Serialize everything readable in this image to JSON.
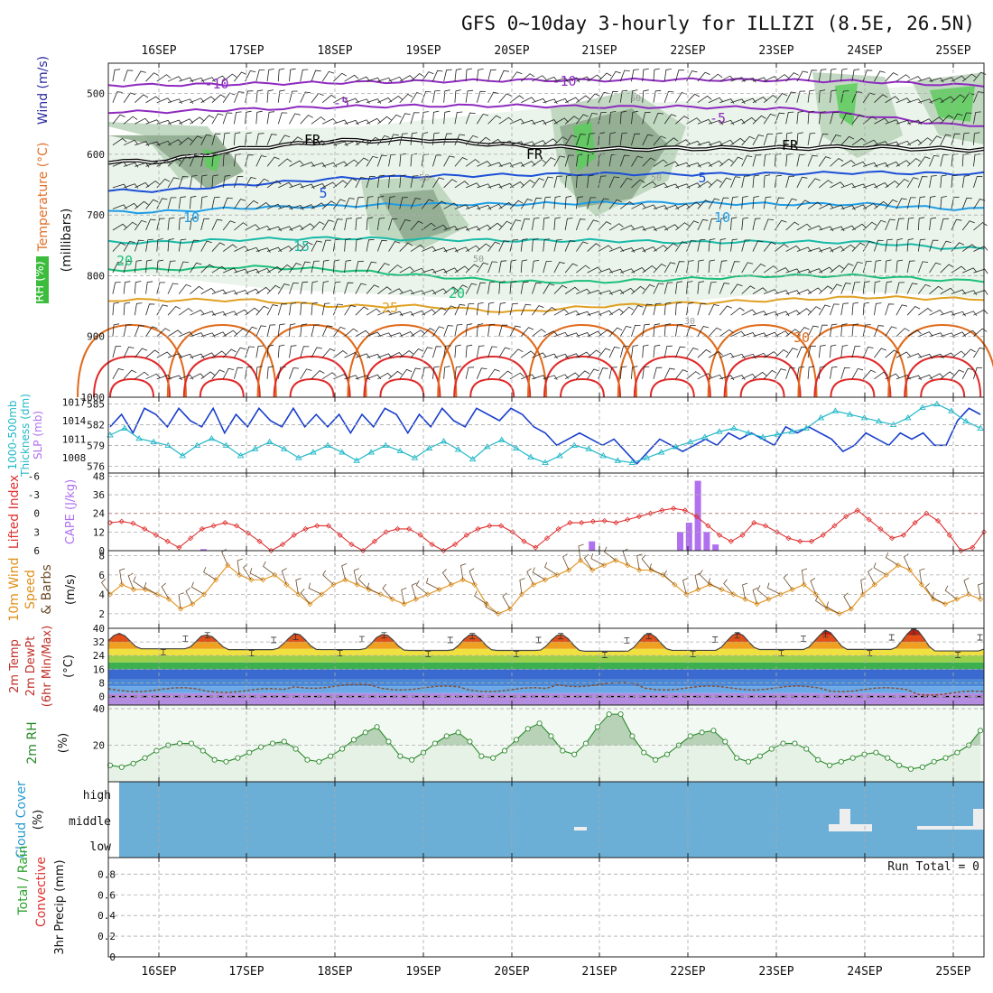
{
  "title": "GFS 0~10day 3-hourly for ILLIZI (8.5E, 26.5N)",
  "colors": {
    "temp_minus10": "#8e2bbf",
    "temp_minus5": "#8e2bbf",
    "freezing": "#000000",
    "temp_plus5": "#1c4fd8",
    "temp_plus10": "#1f9ce6",
    "temp_plus15": "#18b9a8",
    "temp_plus20": "#1cbf7a",
    "temp_plus25": "#e0a020",
    "temp_plus30": "#e06a1a",
    "temp_hot": "#e02a2a",
    "slp": "#1a3fcc",
    "thickness": "#22b8c8",
    "lifted_index": "#e03030",
    "cape": "#b070f0",
    "wind_speed": "#e0901a",
    "rh2m": "#2a8a2a",
    "cloud": "#6baed6",
    "rh_shade_light": "#e6f2e6",
    "rh_shade_mid": "#b8d2b8",
    "rh_shade_dark": "#8ca88c",
    "rh_shade_green": "#5ccc5c"
  },
  "chart_data": [
    {
      "type": "time-height",
      "name_panel": "upper-air",
      "ylabel_parts": [
        "RH (%)",
        "Temperature (°C)",
        "Wind (m/s)"
      ],
      "ylabel_units": "(millibars)",
      "x_top_labels": [
        "16SEP",
        "17SEP",
        "18SEP",
        "19SEP",
        "20SEP",
        "21SEP",
        "22SEP",
        "23SEP",
        "24SEP",
        "25SEP"
      ],
      "y_ticks": [
        "500",
        "600",
        "700",
        "800",
        "900",
        "1000"
      ],
      "ylim": [
        1000,
        450
      ],
      "isotherms": [
        {
          "label": "-10",
          "values": [
            486,
            484,
            482,
            480,
            478,
            478,
            477,
            478,
            480,
            486
          ]
        },
        {
          "label": "-5",
          "values": [
            530,
            526,
            522,
            520,
            520,
            522,
            522,
            524,
            536,
            552
          ]
        },
        {
          "label": "FR",
          "values": [
            612,
            590,
            578,
            576,
            585,
            592,
            590,
            590,
            588,
            592
          ]
        },
        {
          "label": "5",
          "values": [
            660,
            650,
            640,
            636,
            634,
            632,
            633,
            632,
            630,
            632
          ]
        },
        {
          "label": "10",
          "values": [
            695,
            688,
            685,
            682,
            682,
            680,
            680,
            682,
            682,
            690
          ]
        },
        {
          "label": "15",
          "values": [
            745,
            740,
            738,
            740,
            742,
            742,
            745,
            744,
            745,
            755
          ]
        },
        {
          "label": "20",
          "values": [
            790,
            785,
            790,
            800,
            810,
            810,
            805,
            800,
            800,
            808
          ]
        },
        {
          "label": "25",
          "values": [
            840,
            840,
            850,
            850,
            860,
            850,
            845,
            840,
            835,
            838
          ]
        }
      ],
      "inline_labels": [
        "-10",
        "-10",
        "-5",
        "-5",
        "FR",
        "FR",
        "FR",
        "5",
        "5",
        "10",
        "10",
        "15",
        "20",
        "20",
        "25",
        "30",
        "30",
        "50",
        "50",
        "50",
        "50"
      ]
    },
    {
      "type": "line",
      "name_panel": "slp-thickness",
      "ylabel_parts": [
        "1000-500mb",
        "Thickness (dm)",
        "SLP (mb)"
      ],
      "y_left_ticks": [
        "585",
        "582",
        "579",
        "576"
      ],
      "y_right_ticks": [
        "1017",
        "1014",
        "1011",
        "1008"
      ],
      "slp": [
        1013,
        1015,
        1012,
        1016,
        1015,
        1013,
        1016,
        1014,
        1013,
        1016,
        1012,
        1015,
        1013,
        1016,
        1014,
        1013,
        1016,
        1013,
        1015,
        1013,
        1015,
        1012,
        1015,
        1013,
        1016,
        1015,
        1012,
        1015,
        1013,
        1016,
        1014,
        1013,
        1016,
        1015,
        1014,
        1016,
        1015,
        1013,
        1012,
        1010,
        1011,
        1012,
        1011,
        1010,
        1011,
        1009,
        1007,
        1009,
        1011,
        1010,
        1009,
        1010,
        1011,
        1010,
        1012,
        1011,
        1012,
        1011,
        1010,
        1013,
        1012,
        1013,
        1012,
        1011,
        1009,
        1010,
        1012,
        1011,
        1010,
        1012,
        1011,
        1012,
        1010,
        1010,
        1014,
        1016,
        1015
      ],
      "thickness": [
        580.5,
        581.5,
        580,
        579.5,
        579,
        577.5,
        579,
        580,
        579,
        577.5,
        578.5,
        579.5,
        578.5,
        577.2,
        578,
        579,
        578,
        576.8,
        578,
        579,
        578.2,
        577.2,
        578.6,
        579.6,
        578.4,
        577,
        578.8,
        579.8,
        578.6,
        577.3,
        576.5,
        577.5,
        579,
        578.5,
        577.5,
        576.8,
        576.5,
        577.2,
        578,
        578.8,
        579.5,
        580.2,
        581,
        581.5,
        580.8,
        580.2,
        580.6,
        581,
        581.5,
        583,
        584,
        583.5,
        583,
        582.5,
        582,
        583,
        584.5,
        585,
        584,
        582.5,
        581.5
      ]
    },
    {
      "type": "bar-line",
      "name_panel": "cape-li",
      "ylabel_parts": [
        "Lifted Index",
        "CAPE (J/kg)"
      ],
      "y_left_ticks": [
        "-6",
        "-3",
        "0",
        "3",
        "6"
      ],
      "y_right_ticks": [
        "48",
        "36",
        "24",
        "12",
        "0"
      ],
      "cape_bars": [
        {
          "x": 0.5,
          "v": 1
        },
        {
          "x": 4.9,
          "v": 6
        },
        {
          "x": 5.9,
          "v": 12
        },
        {
          "x": 6.0,
          "v": 18
        },
        {
          "x": 6.1,
          "v": 45
        },
        {
          "x": 6.2,
          "v": 12
        },
        {
          "x": 6.3,
          "v": 4
        }
      ],
      "lifted_index": [
        1.5,
        1.3,
        1.6,
        2.5,
        3.5,
        4.5,
        5.5,
        4,
        2.5,
        2,
        1.5,
        2,
        3.2,
        4.5,
        6,
        5,
        3.5,
        2.5,
        2,
        2,
        3.5,
        5,
        6,
        4.5,
        3,
        2.5,
        2.5,
        3.5,
        5,
        6,
        5,
        3.5,
        2.5,
        2,
        2,
        3,
        4.5,
        5.5,
        4,
        2.5,
        1.5,
        1.5,
        1.3,
        1.2,
        1.5,
        1,
        0.5,
        0,
        -0.5,
        -0.8,
        -0.5,
        0.5,
        2,
        3.5,
        4.5,
        3.5,
        1.5,
        2,
        3,
        4,
        4.5,
        4.5,
        3.5,
        2,
        0.5,
        -0.5,
        1,
        2.5,
        4,
        3.5,
        1.5,
        0,
        1.2,
        3.5,
        6,
        5.5,
        3
      ]
    },
    {
      "type": "line",
      "name_panel": "wind10m",
      "ylabel_parts": [
        "10m Wind",
        "Speed",
        "& Barbs"
      ],
      "y_ticks": [
        "8",
        "6",
        "4",
        "2"
      ],
      "ylabel_units": "(m/s)",
      "speed": [
        4,
        5,
        4.5,
        4.5,
        4,
        3.5,
        2.5,
        3,
        4,
        5.5,
        7,
        6,
        5.5,
        5.5,
        6,
        5,
        4,
        3,
        4,
        5,
        5.5,
        5,
        4.5,
        4,
        3.5,
        3,
        3.5,
        4,
        4.5,
        5,
        5.5,
        5,
        3,
        2,
        2.5,
        4,
        5,
        5.5,
        6,
        6.5,
        7.5,
        6.5,
        7,
        7.5,
        7,
        6.5,
        6.5,
        6,
        5,
        4,
        4.5,
        5,
        4.5,
        4,
        3.5,
        3,
        3.5,
        4,
        4.5,
        5,
        4,
        2.5,
        2,
        2.5,
        4,
        5,
        6,
        7,
        6.5,
        5,
        3.5,
        3,
        3.5,
        4,
        3.5
      ]
    },
    {
      "type": "area",
      "name_panel": "temp2m",
      "ylabel_parts": [
        "2m Temp",
        "2m DewPt",
        "(6hr Min/Max)"
      ],
      "ylabel_units": "(°C)",
      "y_ticks": [
        "40",
        "32",
        "24",
        "16",
        "8",
        "0"
      ],
      "temp_max": [
        37.5,
        36.5,
        37.5,
        37,
        37,
        37,
        37.5,
        38,
        39.5,
        40.5
      ],
      "temp_min": [
        27.5,
        27,
        27,
        26.5,
        26.5,
        26,
        26.5,
        27,
        27,
        26
      ],
      "dewpt": [
        4,
        3.5,
        6,
        5,
        4,
        7,
        5,
        5,
        4,
        2
      ]
    },
    {
      "type": "area",
      "name_panel": "rh2m",
      "ylabel_parts": [
        "2m RH"
      ],
      "ylabel_units": "(%)",
      "y_ticks": [
        "40",
        "20"
      ],
      "rh": [
        9,
        8,
        10,
        13,
        17,
        20,
        21,
        21,
        17,
        12,
        11,
        13,
        16,
        19,
        21,
        22,
        18,
        12,
        11,
        14,
        18,
        23,
        27,
        30,
        22,
        14,
        12,
        16,
        21,
        25,
        27,
        22,
        14,
        13,
        17,
        23,
        29,
        32,
        25,
        17,
        15,
        21,
        30,
        37,
        37,
        25,
        16,
        12,
        15,
        20,
        25,
        27,
        28,
        22,
        13,
        11,
        14,
        18,
        21,
        21,
        18,
        12,
        9,
        11,
        13,
        15,
        16,
        13,
        9,
        7,
        8,
        11,
        13,
        16,
        20,
        28
      ]
    },
    {
      "type": "heatmap",
      "name_panel": "cloud",
      "ylabel_parts": [
        "Cloud Cover",
        "(%)"
      ],
      "y_ticks": [
        "high",
        "middle",
        "low"
      ]
    },
    {
      "type": "bar",
      "name_panel": "precip",
      "ylabel_parts": [
        "Total / Rain",
        "Convective",
        "3hr Precip (mm)"
      ],
      "y_ticks": [
        "0.8",
        "0.6",
        "0.4",
        "0.2",
        "0"
      ],
      "run_total": "Run Total = 0",
      "x_bottom_labels": [
        "16SEP",
        "17SEP",
        "18SEP",
        "19SEP",
        "20SEP",
        "21SEP",
        "22SEP",
        "23SEP",
        "24SEP",
        "25SEP"
      ]
    }
  ]
}
